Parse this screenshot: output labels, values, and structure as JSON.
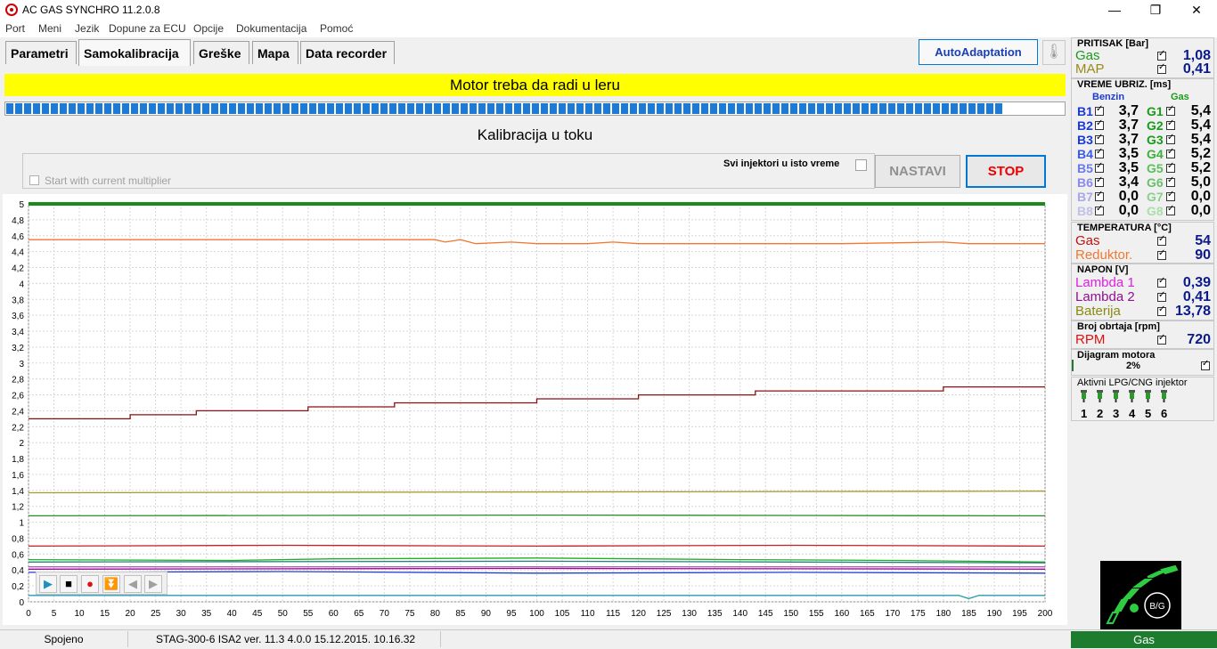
{
  "title": "AC GAS SYNCHRO  11.2.0.8",
  "menu": [
    "Port",
    "Meni",
    "Jezik",
    "Dopune za ECU",
    "Opcije",
    "Dokumentacija",
    "Pomoć"
  ],
  "window_controls": {
    "minimize": "—",
    "maximize": "❐",
    "close": "✕"
  },
  "tabs": [
    "Parametri",
    "Samokalibracija",
    "Greške",
    "Mapa",
    "Data recorder"
  ],
  "active_tab": "Samokalibracija",
  "autoadaptation_label": "AutoAdaptation",
  "banner": "Motor treba da radi u leru",
  "progress_fraction": 0.942,
  "calibration_status": "Kalibracija u toku",
  "start_with_multiplier": "Start with current multiplier",
  "svi_injektori": "Svi injektori u isto vreme",
  "nastavi_label": "NASTAVI",
  "stop_label": "STOP",
  "status_bar": {
    "connection": "Spojeno",
    "device": "STAG-300-6 ISA2   ver. 11.3  4.0.0     15.12.2015. 10.16.32",
    "fuel_mode": "Gas"
  },
  "pressure": {
    "header": "PRITISAK [Bar]",
    "rows": [
      {
        "label": "Gas",
        "value": "1,08",
        "color": "#1a9a1a"
      },
      {
        "label": "MAP",
        "value": "0,41",
        "color": "#9a8a1a"
      }
    ]
  },
  "injection": {
    "header": "VREME UBRIZ. [ms]",
    "benzin_label": "Benzin",
    "gas_label": "Gas",
    "rows": [
      {
        "b": "B1",
        "bv": "3,7",
        "g": "G1",
        "gv": "5,4"
      },
      {
        "b": "B2",
        "bv": "3,7",
        "g": "G2",
        "gv": "5,4"
      },
      {
        "b": "B3",
        "bv": "3,7",
        "g": "G3",
        "gv": "5,4"
      },
      {
        "b": "B4",
        "bv": "3,5",
        "g": "G4",
        "gv": "5,2"
      },
      {
        "b": "B5",
        "bv": "3,5",
        "g": "G5",
        "gv": "5,2"
      },
      {
        "b": "B6",
        "bv": "3,4",
        "g": "G6",
        "gv": "5,0"
      },
      {
        "b": "B7",
        "bv": "0,0",
        "g": "G7",
        "gv": "0,0"
      },
      {
        "b": "B8",
        "bv": "0,0",
        "g": "G8",
        "gv": "0,0"
      }
    ]
  },
  "temperature": {
    "header": "TEMPERATURA  [°C]",
    "rows": [
      {
        "label": "Gas",
        "value": "54",
        "color": "#c01010"
      },
      {
        "label": "Reduktor.",
        "value": "90",
        "color": "#f07830"
      }
    ]
  },
  "voltage": {
    "header": "NAPON [V]",
    "rows": [
      {
        "label": "Lambda 1",
        "value": "0,39",
        "color": "#e020e0"
      },
      {
        "label": "Lambda 2",
        "value": "0,41",
        "color": "#901090"
      },
      {
        "label": "Baterija",
        "value": "13,78",
        "color": "#8a8a10"
      }
    ]
  },
  "rpm": {
    "header": "Broj obrtaja [rpm]",
    "label": "RPM",
    "value": "720",
    "color": "#e01010"
  },
  "engine_diagram": {
    "header": "Dijagram motora",
    "percent": "2%"
  },
  "active_injectors": {
    "header": "Aktivni LPG/CNG injektor",
    "numbers": [
      "1",
      "2",
      "3",
      "4",
      "5",
      "6"
    ]
  },
  "logo_text": "B/G",
  "chart_data": {
    "type": "line",
    "x_ticks": [
      0,
      5,
      10,
      15,
      20,
      25,
      30,
      35,
      40,
      45,
      50,
      55,
      60,
      65,
      70,
      75,
      80,
      85,
      90,
      95,
      100,
      105,
      110,
      115,
      120,
      125,
      130,
      135,
      140,
      145,
      150,
      155,
      160,
      165,
      170,
      175,
      180,
      185,
      190,
      195,
      200
    ],
    "y_ticks": [
      "0",
      "0,2",
      "0,4",
      "0,6",
      "0,8",
      "1",
      "1,2",
      "1,4",
      "1,6",
      "1,8",
      "2",
      "2,2",
      "2,4",
      "2,6",
      "2,8",
      "3",
      "3,2",
      "3,4",
      "3,6",
      "3,8",
      "4",
      "4,2",
      "4,4",
      "4,6",
      "4,8",
      "5"
    ],
    "xlim": [
      0,
      200
    ],
    "ylim": [
      0,
      5
    ],
    "grid": true,
    "series": [
      {
        "color": "#1a8a1a",
        "points": [
          [
            0,
            5
          ],
          [
            200,
            5
          ]
        ]
      },
      {
        "color": "#f07830",
        "points": [
          [
            0,
            4.55
          ],
          [
            80,
            4.55
          ],
          [
            82,
            4.52
          ],
          [
            85,
            4.55
          ],
          [
            88,
            4.5
          ],
          [
            95,
            4.52
          ],
          [
            100,
            4.5
          ],
          [
            110,
            4.5
          ],
          [
            115,
            4.52
          ],
          [
            120,
            4.5
          ],
          [
            150,
            4.5
          ],
          [
            160,
            4.5
          ],
          [
            180,
            4.52
          ],
          [
            185,
            4.5
          ],
          [
            200,
            4.5
          ]
        ]
      },
      {
        "color": "#8b1010",
        "points": [
          [
            0,
            2.3
          ],
          [
            20,
            2.3
          ],
          [
            20,
            2.35
          ],
          [
            33,
            2.35
          ],
          [
            33,
            2.4
          ],
          [
            55,
            2.4
          ],
          [
            55,
            2.45
          ],
          [
            72,
            2.45
          ],
          [
            72,
            2.5
          ],
          [
            100,
            2.5
          ],
          [
            100,
            2.55
          ],
          [
            120,
            2.55
          ],
          [
            120,
            2.6
          ],
          [
            143,
            2.6
          ],
          [
            143,
            2.65
          ],
          [
            180,
            2.65
          ],
          [
            180,
            2.7
          ],
          [
            200,
            2.7
          ]
        ]
      },
      {
        "color": "#a89a2a",
        "points": [
          [
            0,
            1.37
          ],
          [
            200,
            1.39
          ]
        ]
      },
      {
        "color": "#2a8a2a",
        "points": [
          [
            0,
            1.08
          ],
          [
            100,
            1.09
          ],
          [
            200,
            1.08
          ]
        ]
      },
      {
        "color": "#c02020",
        "points": [
          [
            0,
            0.7
          ],
          [
            50,
            0.71
          ],
          [
            100,
            0.7
          ],
          [
            150,
            0.71
          ],
          [
            200,
            0.7
          ]
        ]
      },
      {
        "color": "#20b020",
        "points": [
          [
            0,
            0.53
          ],
          [
            40,
            0.52
          ],
          [
            60,
            0.54
          ],
          [
            100,
            0.55
          ],
          [
            140,
            0.53
          ],
          [
            170,
            0.52
          ],
          [
            200,
            0.5
          ]
        ]
      },
      {
        "color": "#208080",
        "points": [
          [
            0,
            0.5
          ],
          [
            100,
            0.51
          ],
          [
            200,
            0.49
          ]
        ]
      },
      {
        "color": "#b060b0",
        "points": [
          [
            0,
            0.44
          ],
          [
            200,
            0.44
          ]
        ]
      },
      {
        "color": "#901090",
        "points": [
          [
            0,
            0.41
          ],
          [
            100,
            0.42
          ],
          [
            200,
            0.41
          ]
        ]
      },
      {
        "color": "#2040d0",
        "points": [
          [
            0,
            0.37
          ],
          [
            50,
            0.38
          ],
          [
            100,
            0.36
          ],
          [
            150,
            0.37
          ],
          [
            200,
            0.36
          ]
        ]
      },
      {
        "color": "#2a9ab0",
        "points": [
          [
            0,
            0.08
          ],
          [
            183,
            0.08
          ],
          [
            185,
            0.04
          ],
          [
            187,
            0.08
          ],
          [
            200,
            0.08
          ]
        ]
      }
    ]
  }
}
